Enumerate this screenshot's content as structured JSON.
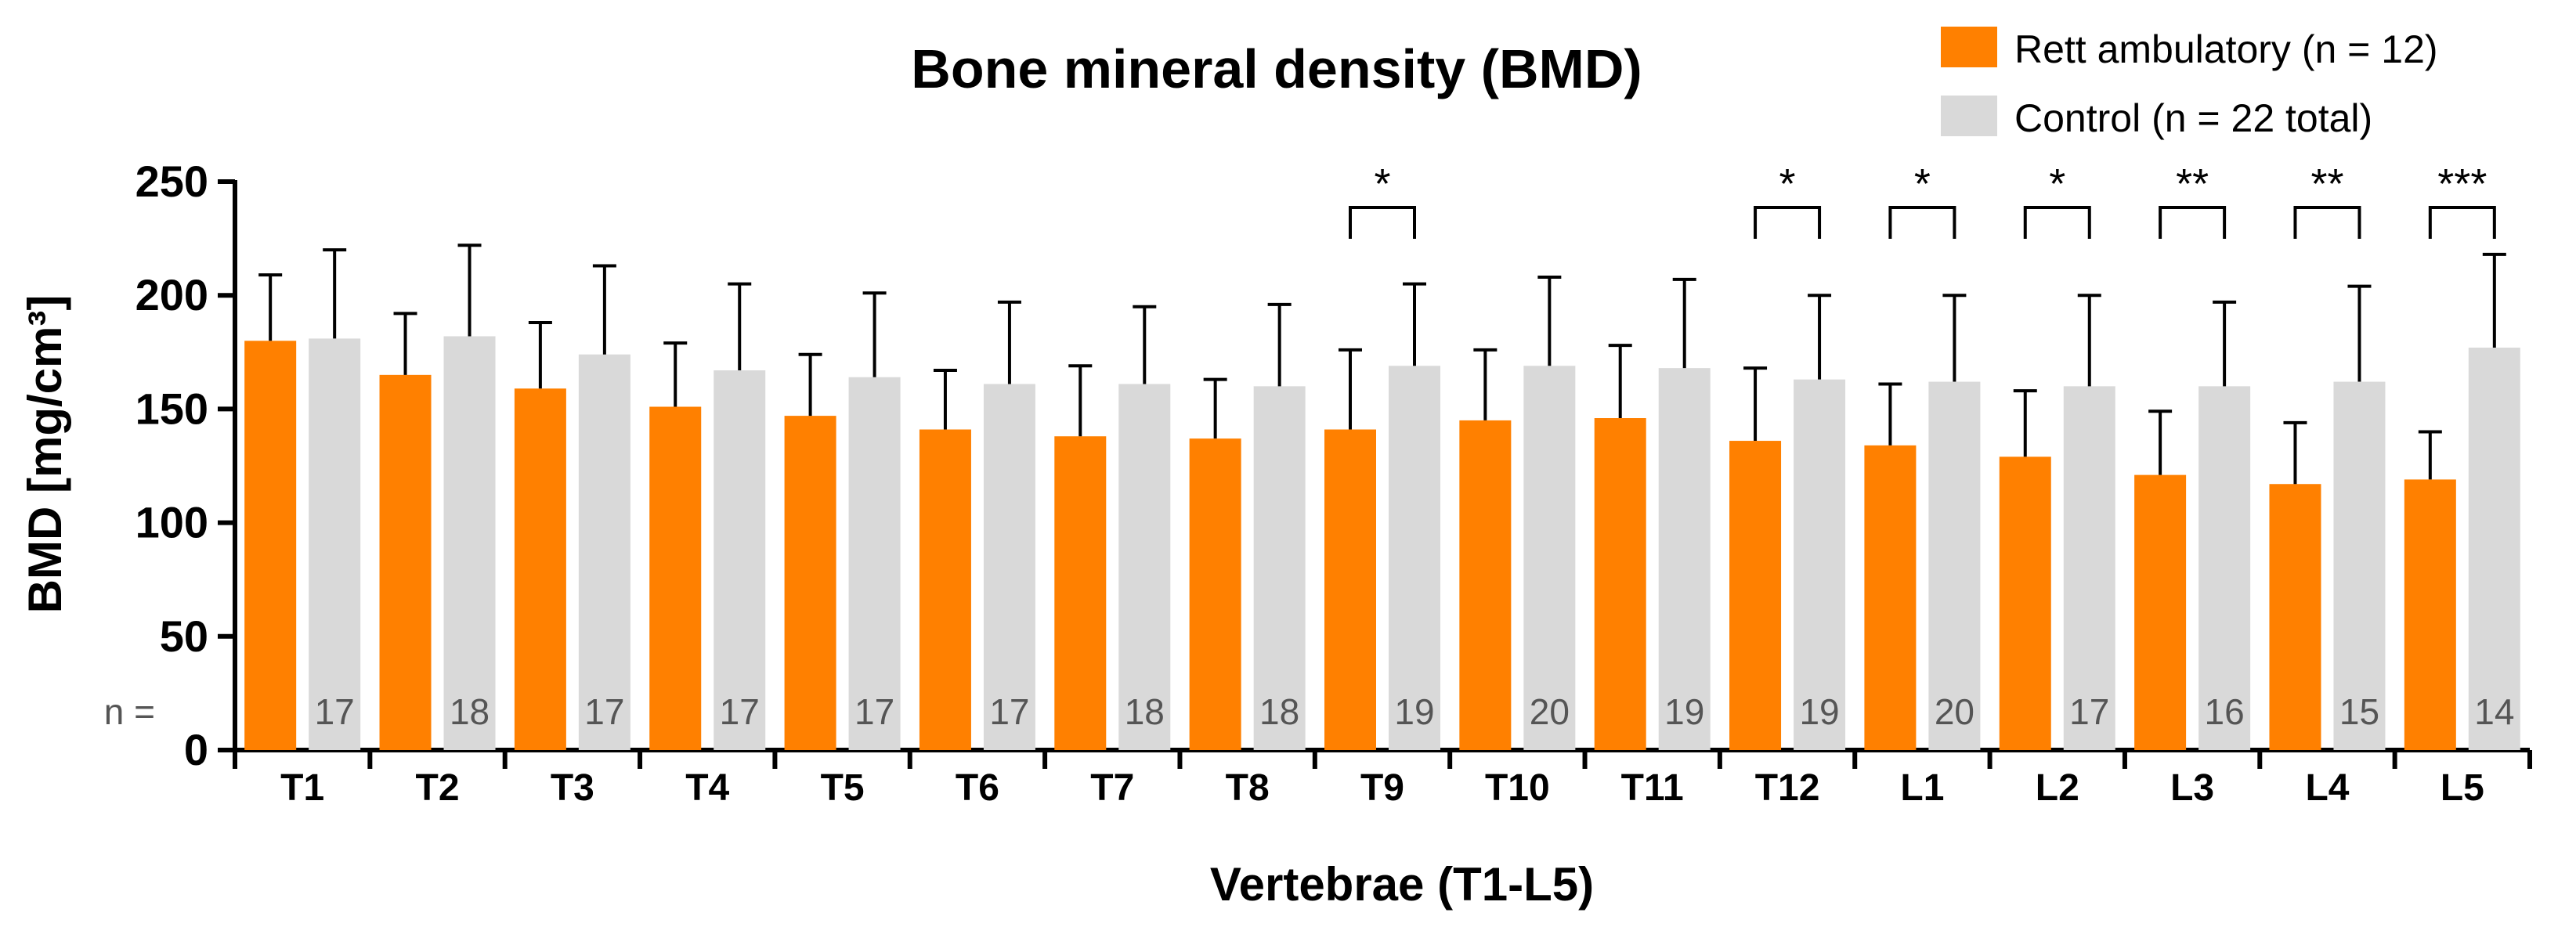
{
  "chart_data": {
    "type": "bar",
    "title": "Bone mineral density (BMD)",
    "ylabel": "BMD [mg/cm³]",
    "xlabel": "Vertebrae (T1-L5)",
    "ylim": [
      0,
      250
    ],
    "yticks": [
      0,
      50,
      100,
      150,
      200,
      250
    ],
    "categories": [
      "T1",
      "T2",
      "T3",
      "T4",
      "T5",
      "T6",
      "T7",
      "T8",
      "T9",
      "T10",
      "T11",
      "T12",
      "L1",
      "L2",
      "L3",
      "L4",
      "L5"
    ],
    "series": [
      {
        "name": "Rett ambulatory (n = 12)",
        "color": "#ff8000",
        "values": [
          180,
          165,
          159,
          151,
          147,
          141,
          138,
          137,
          141,
          145,
          146,
          136,
          134,
          129,
          121,
          117,
          119
        ],
        "errors": [
          29,
          27,
          29,
          28,
          27,
          26,
          31,
          26,
          35,
          31,
          32,
          32,
          27,
          29,
          28,
          27,
          21
        ]
      },
      {
        "name": "Control (n = 22 total)",
        "color": "#d9d9d9",
        "values": [
          181,
          182,
          174,
          167,
          164,
          161,
          161,
          160,
          169,
          169,
          168,
          163,
          162,
          160,
          160,
          162,
          177
        ],
        "errors": [
          39,
          40,
          39,
          38,
          37,
          36,
          34,
          36,
          36,
          39,
          39,
          37,
          38,
          40,
          37,
          42,
          41
        ]
      }
    ],
    "n_label": "n =",
    "n_values": [
      "17",
      "18",
      "17",
      "17",
      "17",
      "17",
      "18",
      "18",
      "19",
      "20",
      "19",
      "19",
      "20",
      "17",
      "16",
      "15",
      "14"
    ],
    "significance": [
      {
        "category": "T9",
        "label": "*"
      },
      {
        "category": "T12",
        "label": "*"
      },
      {
        "category": "L1",
        "label": "*"
      },
      {
        "category": "L2",
        "label": "*"
      },
      {
        "category": "L3",
        "label": "**"
      },
      {
        "category": "L4",
        "label": "**"
      },
      {
        "category": "L5",
        "label": "***"
      }
    ],
    "legend_position": "top-right",
    "grid": false
  }
}
